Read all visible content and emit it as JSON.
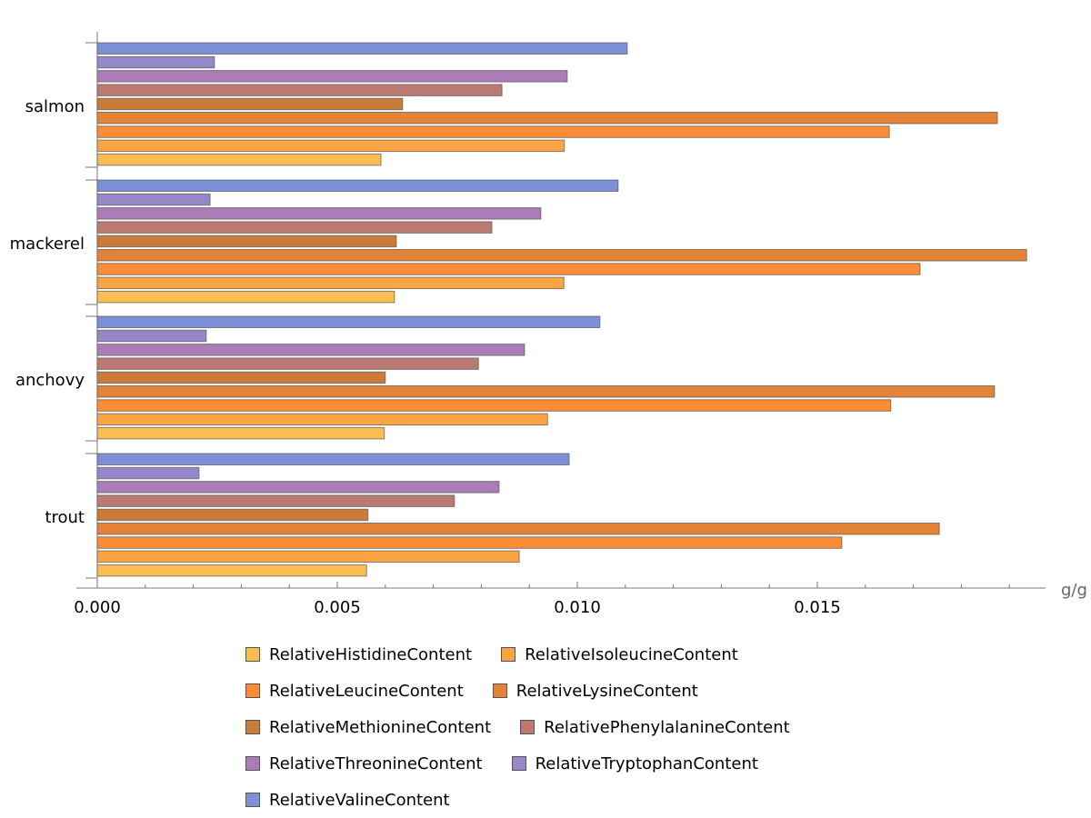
{
  "chart_data": {
    "type": "bar",
    "orientation": "horizontal",
    "categories": [
      "salmon",
      "mackerel",
      "anchovy",
      "trout"
    ],
    "xlabel": "g/g",
    "xlim": [
      0,
      0.0198
    ],
    "xticks": [
      "0.000",
      "0.005",
      "0.010",
      "0.015"
    ],
    "legend_position": "bottom",
    "series": [
      {
        "name": "RelativeHistidineContent",
        "color": "#fbbc52",
        "values": [
          0.00591,
          0.00619,
          0.00598,
          0.00561
        ]
      },
      {
        "name": "RelativeIsoleucineContent",
        "color": "#fba443",
        "values": [
          0.00973,
          0.00972,
          0.00938,
          0.00879
        ]
      },
      {
        "name": "RelativeLeucineContent",
        "color": "#fc8c35",
        "values": [
          0.0165,
          0.01714,
          0.01653,
          0.01551
        ]
      },
      {
        "name": "RelativeLysineContent",
        "color": "#e48335",
        "values": [
          0.01875,
          0.01936,
          0.01869,
          0.01754
        ]
      },
      {
        "name": "RelativeMethionineContent",
        "color": "#c97b37",
        "values": [
          0.00636,
          0.00623,
          0.006,
          0.00564
        ]
      },
      {
        "name": "RelativePhenylalanineContent",
        "color": "#ba7a72",
        "values": [
          0.00843,
          0.00822,
          0.00794,
          0.00744
        ]
      },
      {
        "name": "RelativeThreonineContent",
        "color": "#ab7cb8",
        "values": [
          0.00979,
          0.00924,
          0.0089,
          0.00837
        ]
      },
      {
        "name": "RelativeTryptophanContent",
        "color": "#9688c8",
        "values": [
          0.00244,
          0.00235,
          0.00227,
          0.00212
        ]
      },
      {
        "name": "RelativeValineContent",
        "color": "#7d8fd6",
        "values": [
          0.01104,
          0.01085,
          0.01047,
          0.00983
        ]
      }
    ]
  }
}
